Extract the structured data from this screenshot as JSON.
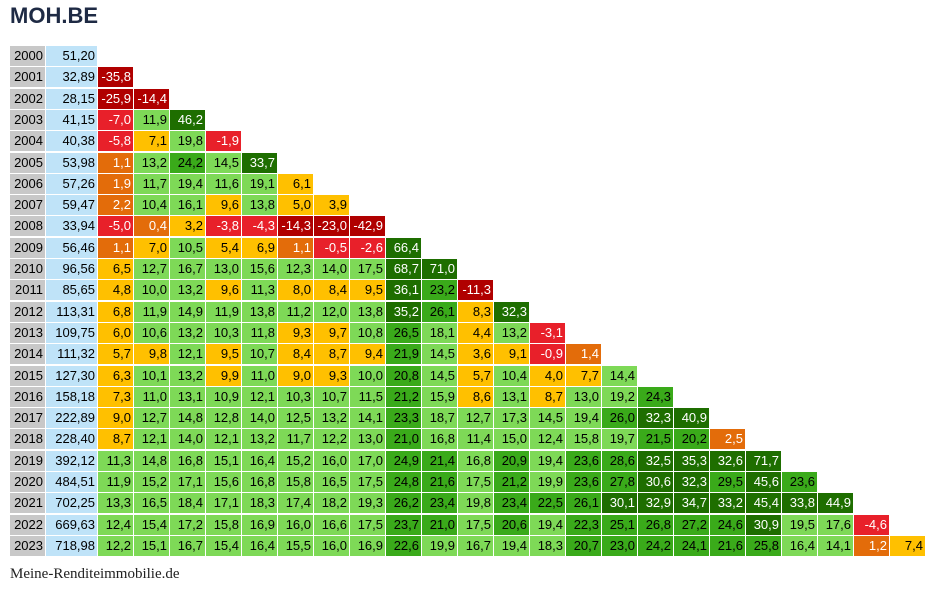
{
  "title": "MOH.BE",
  "footer": "Meine-Renditeimmobilie.de",
  "colors": {
    "year_bg": "#c8c8c8",
    "price_bg": "#bfe3f8",
    "dark_red": "#b00000",
    "red": "#e8202a",
    "orange": "#e36c0a",
    "yellow": "#ffc000",
    "light_green": "#7ed957",
    "mid_green": "#3aaa1a",
    "dark_green": "#1e6e00"
  },
  "chart_data": {
    "type": "table",
    "title": "MOH.BE",
    "years": [
      "2000",
      "2001",
      "2002",
      "2003",
      "2004",
      "2005",
      "2006",
      "2007",
      "2008",
      "2009",
      "2010",
      "2011",
      "2012",
      "2013",
      "2014",
      "2015",
      "2016",
      "2017",
      "2018",
      "2019",
      "2020",
      "2021",
      "2022",
      "2023"
    ],
    "prices": [
      "51,20",
      "32,89",
      "28,15",
      "41,15",
      "40,38",
      "53,98",
      "57,26",
      "59,47",
      "33,94",
      "56,46",
      "96,56",
      "85,65",
      "113,31",
      "109,75",
      "111,32",
      "127,30",
      "158,18",
      "222,89",
      "228,40",
      "392,12",
      "484,51",
      "702,25",
      "669,63",
      "718,98"
    ],
    "returns": [
      [],
      [
        "-35,8"
      ],
      [
        "-25,9",
        "-14,4"
      ],
      [
        "-7,0",
        "11,9",
        "46,2"
      ],
      [
        "-5,8",
        "7,1",
        "19,8",
        "-1,9"
      ],
      [
        "1,1",
        "13,2",
        "24,2",
        "14,5",
        "33,7"
      ],
      [
        "1,9",
        "11,7",
        "19,4",
        "11,6",
        "19,1",
        "6,1"
      ],
      [
        "2,2",
        "10,4",
        "16,1",
        "9,6",
        "13,8",
        "5,0",
        "3,9"
      ],
      [
        "-5,0",
        "0,4",
        "3,2",
        "-3,8",
        "-4,3",
        "-14,3",
        "-23,0",
        "-42,9"
      ],
      [
        "1,1",
        "7,0",
        "10,5",
        "5,4",
        "6,9",
        "1,1",
        "-0,5",
        "-2,6",
        "66,4"
      ],
      [
        "6,5",
        "12,7",
        "16,7",
        "13,0",
        "15,6",
        "12,3",
        "14,0",
        "17,5",
        "68,7",
        "71,0"
      ],
      [
        "4,8",
        "10,0",
        "13,2",
        "9,6",
        "11,3",
        "8,0",
        "8,4",
        "9,5",
        "36,1",
        "23,2",
        "-11,3"
      ],
      [
        "6,8",
        "11,9",
        "14,9",
        "11,9",
        "13,8",
        "11,2",
        "12,0",
        "13,8",
        "35,2",
        "26,1",
        "8,3",
        "32,3"
      ],
      [
        "6,0",
        "10,6",
        "13,2",
        "10,3",
        "11,8",
        "9,3",
        "9,7",
        "10,8",
        "26,5",
        "18,1",
        "4,4",
        "13,2",
        "-3,1"
      ],
      [
        "5,7",
        "9,8",
        "12,1",
        "9,5",
        "10,7",
        "8,4",
        "8,7",
        "9,4",
        "21,9",
        "14,5",
        "3,6",
        "9,1",
        "-0,9",
        "1,4"
      ],
      [
        "6,3",
        "10,1",
        "13,2",
        "9,9",
        "11,0",
        "9,0",
        "9,3",
        "10,0",
        "20,8",
        "14,5",
        "5,7",
        "10,4",
        "4,0",
        "7,7",
        "14,4"
      ],
      [
        "7,3",
        "11,0",
        "13,1",
        "10,9",
        "12,1",
        "10,3",
        "10,7",
        "11,5",
        "21,2",
        "15,9",
        "8,6",
        "13,1",
        "8,7",
        "13,0",
        "19,2",
        "24,3"
      ],
      [
        "9,0",
        "12,7",
        "14,8",
        "12,8",
        "14,0",
        "12,5",
        "13,2",
        "14,1",
        "23,3",
        "18,7",
        "12,7",
        "17,3",
        "14,5",
        "19,4",
        "26,0",
        "32,3",
        "40,9"
      ],
      [
        "8,7",
        "12,1",
        "14,0",
        "12,1",
        "13,2",
        "11,7",
        "12,2",
        "13,0",
        "21,0",
        "16,8",
        "11,4",
        "15,0",
        "12,4",
        "15,8",
        "19,7",
        "21,5",
        "20,2",
        "2,5"
      ],
      [
        "11,3",
        "14,8",
        "16,8",
        "15,1",
        "16,4",
        "15,2",
        "16,0",
        "17,0",
        "24,9",
        "21,4",
        "16,8",
        "20,9",
        "19,4",
        "23,6",
        "28,6",
        "32,5",
        "35,3",
        "32,6",
        "71,7"
      ],
      [
        "11,9",
        "15,2",
        "17,1",
        "15,6",
        "16,8",
        "15,8",
        "16,5",
        "17,5",
        "24,8",
        "21,6",
        "17,5",
        "21,2",
        "19,9",
        "23,6",
        "27,8",
        "30,6",
        "32,3",
        "29,5",
        "45,6",
        "23,6"
      ],
      [
        "13,3",
        "16,5",
        "18,4",
        "17,1",
        "18,3",
        "17,4",
        "18,2",
        "19,3",
        "26,2",
        "23,4",
        "19,8",
        "23,4",
        "22,5",
        "26,1",
        "30,1",
        "32,9",
        "34,7",
        "33,2",
        "45,4",
        "33,8",
        "44,9"
      ],
      [
        "12,4",
        "15,4",
        "17,2",
        "15,8",
        "16,9",
        "16,0",
        "16,6",
        "17,5",
        "23,7",
        "21,0",
        "17,5",
        "20,6",
        "19,4",
        "22,3",
        "25,1",
        "26,8",
        "27,2",
        "24,6",
        "30,9",
        "19,5",
        "17,6",
        "-4,6"
      ],
      [
        "12,2",
        "15,1",
        "16,7",
        "15,4",
        "16,4",
        "15,5",
        "16,0",
        "16,9",
        "22,6",
        "19,9",
        "16,7",
        "19,4",
        "18,3",
        "20,7",
        "23,0",
        "24,2",
        "24,1",
        "21,6",
        "25,8",
        "16,4",
        "14,1",
        "1,2",
        "7,4"
      ]
    ]
  }
}
